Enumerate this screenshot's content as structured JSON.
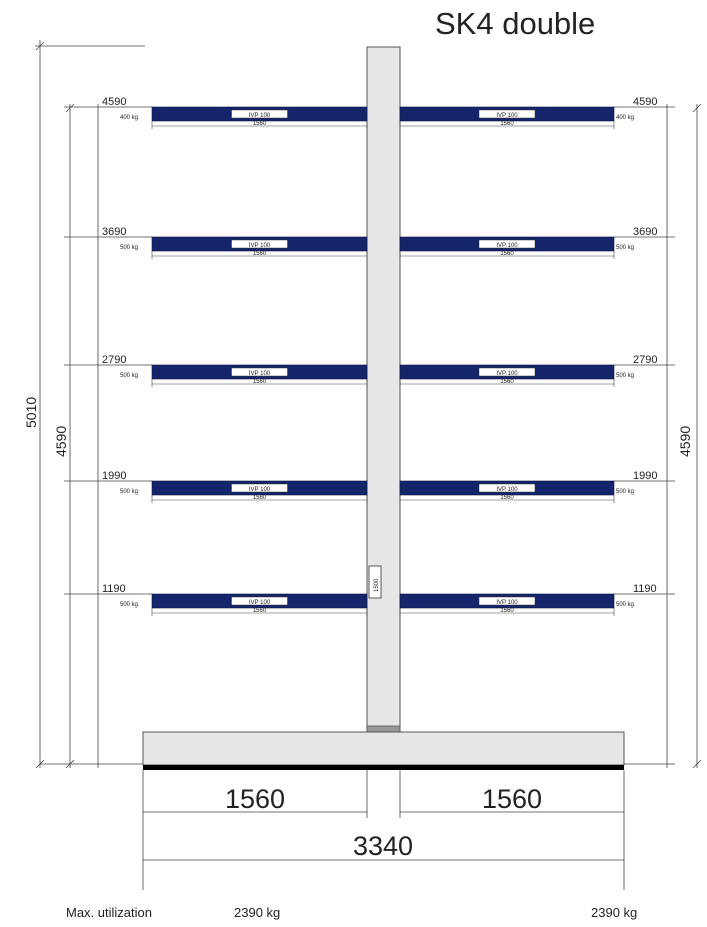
{
  "title": "SK4 double",
  "dimensions": {
    "total_height": "5010",
    "column_height": "4590",
    "base_half_width": "1560",
    "base_total_width": "3340"
  },
  "column_label": "1500",
  "arms": [
    {
      "level": "4590",
      "load": "400 kg",
      "profile": "IVP 100",
      "length": "1560"
    },
    {
      "level": "3690",
      "load": "500 kg",
      "profile": "IVP 100",
      "length": "1560"
    },
    {
      "level": "2790",
      "load": "500 kg",
      "profile": "IVP 100",
      "length": "1560"
    },
    {
      "level": "1990",
      "load": "500 kg",
      "profile": "IVP 100",
      "length": "1560"
    },
    {
      "level": "1190",
      "load": "500 kg",
      "profile": "IVP 100",
      "length": "1560"
    }
  ],
  "footer": {
    "label": "Max. utilization",
    "left_value": "2390 kg",
    "right_value": "2390 kg"
  },
  "colors": {
    "arm": "#14256b",
    "column": "#e8e8e8",
    "base_bar": "#000000"
  }
}
